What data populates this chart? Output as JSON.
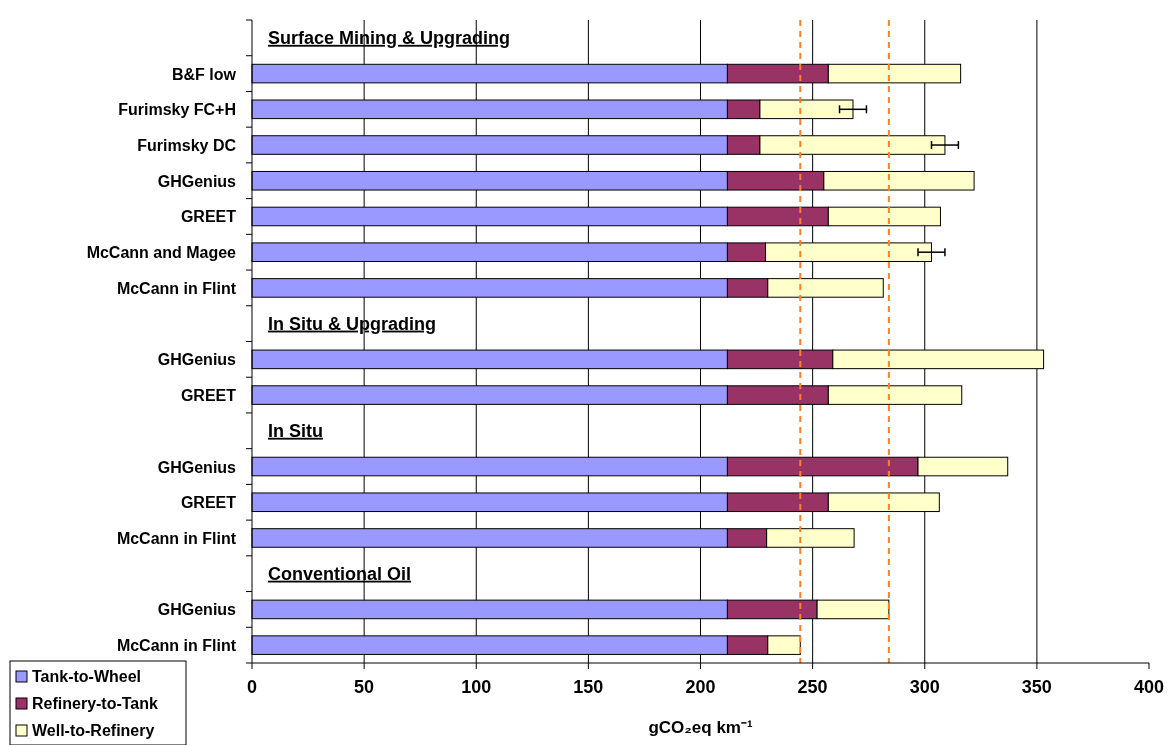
{
  "chart_data": {
    "type": "bar",
    "orientation": "horizontal",
    "stacked": true,
    "categories": [
      null,
      "B&F low",
      "Furimsky FC+H",
      "Furimsky DC",
      "GHGenius",
      "GREET",
      "McCann and Magee",
      "McCann in Flint",
      null,
      "GHGenius",
      "GREET",
      null,
      "GHGenius",
      "GREET",
      "McCann in Flint",
      null,
      "GHGenius",
      "McCann in Flint"
    ],
    "series": [
      {
        "name": "Tank-to-Wheel",
        "color": "#9999ff",
        "values": [
          null,
          212,
          212,
          212,
          212,
          212,
          212,
          212,
          null,
          212,
          212,
          null,
          212,
          212,
          212,
          null,
          212,
          212
        ]
      },
      {
        "name": "Refinery-to-Tank",
        "color": "#993366",
        "values": [
          null,
          45,
          14.5,
          14.5,
          43,
          45,
          17,
          18,
          null,
          47,
          45,
          null,
          85,
          45,
          17.5,
          null,
          40,
          18
        ]
      },
      {
        "name": "Well-to-Refinery",
        "color": "#ffffcc",
        "values": [
          null,
          59,
          41.5,
          82.5,
          67,
          50,
          74,
          51.5,
          null,
          94,
          59.5,
          null,
          40,
          49.5,
          39,
          null,
          32,
          14.5
        ],
        "errors": [
          null,
          null,
          6,
          6,
          null,
          null,
          6,
          null,
          null,
          null,
          null,
          null,
          null,
          null,
          null,
          null,
          null,
          null
        ]
      }
    ],
    "xlim": [
      0,
      400
    ],
    "xticks": [
      0,
      50,
      100,
      150,
      200,
      250,
      300,
      350,
      400
    ],
    "xlabel": "gCO₂eq km⁻¹",
    "grid": "x",
    "legend": "bottom left",
    "ref_lines": [
      {
        "axis": "x",
        "value": 244.5,
        "color": "#ff7f27",
        "line_style": "dashed"
      },
      {
        "axis": "x",
        "value": 284,
        "color": "#ff7f27",
        "line_style": "dashed"
      }
    ],
    "annotations": [
      "Surface Mining & Upgrading",
      "In Situ & Upgrading",
      "In Situ",
      "Conventional Oil"
    ]
  }
}
